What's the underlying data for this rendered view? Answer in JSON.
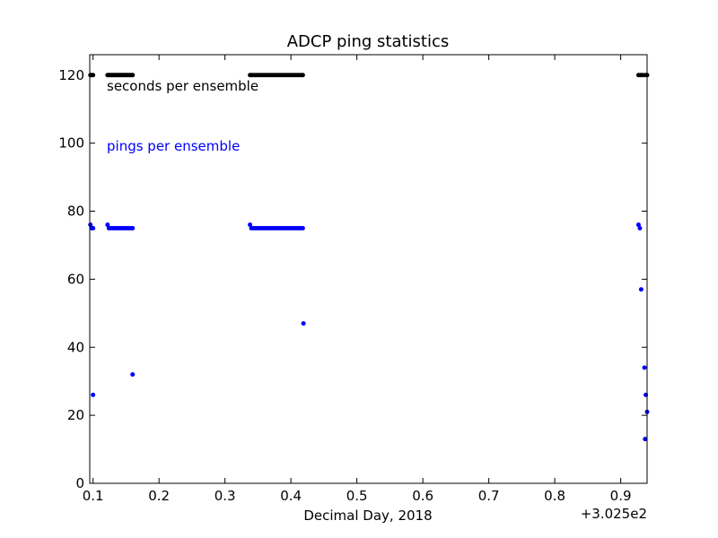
{
  "chart_data": {
    "type": "scatter",
    "title": "ADCP  ping statistics",
    "xlabel": "Decimal Day, 2018",
    "ylabel": "",
    "x_offset_label": "+3.025e2",
    "xlim": [
      0.095,
      0.94
    ],
    "ylim": [
      0,
      126
    ],
    "x_ticks": [
      0.1,
      0.2,
      0.3,
      0.4,
      0.5,
      0.6,
      0.7,
      0.8,
      0.9
    ],
    "x_tick_labels": [
      "0.1",
      "0.2",
      "0.3",
      "0.4",
      "0.5",
      "0.6",
      "0.7",
      "0.8",
      "0.9"
    ],
    "y_ticks": [
      0,
      20,
      40,
      60,
      80,
      100,
      120
    ],
    "y_tick_labels": [
      "0",
      "20",
      "40",
      "60",
      "80",
      "100",
      "120"
    ],
    "grid": false,
    "annotations": [
      {
        "text": "seconds per ensemble",
        "color": "#000000"
      },
      {
        "text": "pings per ensemble",
        "color": "#0000ff"
      }
    ],
    "series": [
      {
        "color": "#000000",
        "points": [
          [
            0.096,
            120
          ],
          [
            0.098,
            120
          ],
          [
            0.1,
            120
          ],
          [
            0.122,
            120
          ],
          [
            0.124,
            120
          ],
          [
            0.126,
            120
          ],
          [
            0.128,
            120
          ],
          [
            0.13,
            120
          ],
          [
            0.132,
            120
          ],
          [
            0.134,
            120
          ],
          [
            0.136,
            120
          ],
          [
            0.138,
            120
          ],
          [
            0.14,
            120
          ],
          [
            0.142,
            120
          ],
          [
            0.144,
            120
          ],
          [
            0.146,
            120
          ],
          [
            0.148,
            120
          ],
          [
            0.15,
            120
          ],
          [
            0.152,
            120
          ],
          [
            0.154,
            120
          ],
          [
            0.156,
            120
          ],
          [
            0.158,
            120
          ],
          [
            0.16,
            120
          ],
          [
            0.338,
            120
          ],
          [
            0.341,
            120
          ],
          [
            0.344,
            120
          ],
          [
            0.347,
            120
          ],
          [
            0.35,
            120
          ],
          [
            0.353,
            120
          ],
          [
            0.356,
            120
          ],
          [
            0.359,
            120
          ],
          [
            0.362,
            120
          ],
          [
            0.365,
            120
          ],
          [
            0.368,
            120
          ],
          [
            0.371,
            120
          ],
          [
            0.374,
            120
          ],
          [
            0.377,
            120
          ],
          [
            0.38,
            120
          ],
          [
            0.383,
            120
          ],
          [
            0.386,
            120
          ],
          [
            0.389,
            120
          ],
          [
            0.392,
            120
          ],
          [
            0.395,
            120
          ],
          [
            0.398,
            120
          ],
          [
            0.401,
            120
          ],
          [
            0.404,
            120
          ],
          [
            0.407,
            120
          ],
          [
            0.41,
            120
          ],
          [
            0.413,
            120
          ],
          [
            0.416,
            120
          ],
          [
            0.418,
            120
          ],
          [
            0.927,
            120
          ],
          [
            0.93,
            120
          ],
          [
            0.933,
            120
          ],
          [
            0.937,
            120
          ],
          [
            0.94,
            120
          ]
        ]
      },
      {
        "color": "#0000ff",
        "points": [
          [
            0.096,
            76
          ],
          [
            0.098,
            75
          ],
          [
            0.1,
            75
          ],
          [
            0.1,
            26
          ],
          [
            0.122,
            76
          ],
          [
            0.124,
            75
          ],
          [
            0.127,
            75
          ],
          [
            0.13,
            75
          ],
          [
            0.133,
            75
          ],
          [
            0.136,
            75
          ],
          [
            0.139,
            75
          ],
          [
            0.142,
            75
          ],
          [
            0.145,
            75
          ],
          [
            0.148,
            75
          ],
          [
            0.151,
            75
          ],
          [
            0.154,
            75
          ],
          [
            0.157,
            75
          ],
          [
            0.16,
            75
          ],
          [
            0.16,
            32
          ],
          [
            0.338,
            76
          ],
          [
            0.34,
            75
          ],
          [
            0.343,
            75
          ],
          [
            0.346,
            75
          ],
          [
            0.349,
            75
          ],
          [
            0.352,
            75
          ],
          [
            0.355,
            75
          ],
          [
            0.358,
            75
          ],
          [
            0.361,
            75
          ],
          [
            0.364,
            75
          ],
          [
            0.367,
            75
          ],
          [
            0.37,
            75
          ],
          [
            0.373,
            75
          ],
          [
            0.376,
            75
          ],
          [
            0.379,
            75
          ],
          [
            0.382,
            75
          ],
          [
            0.385,
            75
          ],
          [
            0.388,
            75
          ],
          [
            0.391,
            75
          ],
          [
            0.394,
            75
          ],
          [
            0.397,
            75
          ],
          [
            0.4,
            75
          ],
          [
            0.403,
            75
          ],
          [
            0.406,
            75
          ],
          [
            0.409,
            75
          ],
          [
            0.412,
            75
          ],
          [
            0.415,
            75
          ],
          [
            0.418,
            75
          ],
          [
            0.419,
            47
          ],
          [
            0.927,
            76
          ],
          [
            0.929,
            75
          ],
          [
            0.931,
            57
          ],
          [
            0.936,
            34
          ],
          [
            0.937,
            13
          ],
          [
            0.938,
            26
          ],
          [
            0.94,
            21
          ]
        ]
      }
    ]
  }
}
